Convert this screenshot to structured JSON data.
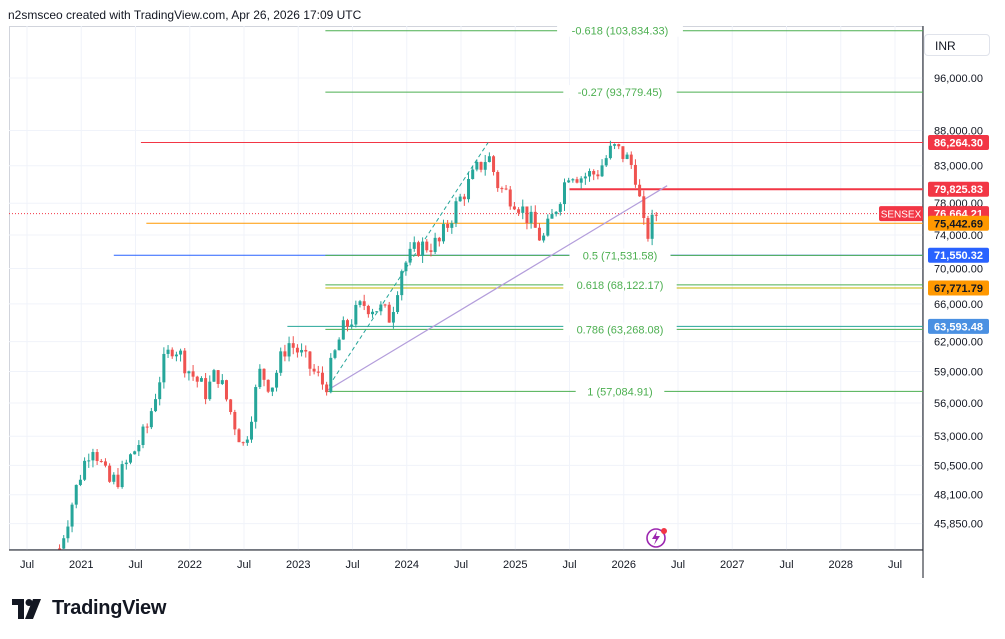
{
  "header": {
    "text": "n2smsceo created with TradingView.com, Apr 26, 2026 17:09 UTC"
  },
  "currency": "INR",
  "branding": {
    "name": "TradingView"
  },
  "colors": {
    "up": "#26a69a",
    "down": "#ef5350",
    "fib_line": "#4caf50",
    "fib_text": "#4caf50",
    "trend": "#b39ddb",
    "grid": "#f0f3fa"
  },
  "chart_data": {
    "type": "candlestick",
    "symbol": "SENSEX",
    "x_axis": {
      "ticks": [
        "Jul",
        "2021",
        "Jul",
        "2022",
        "Jul",
        "2023",
        "Jul",
        "2024",
        "Jul",
        "2025",
        "Jul",
        "2026",
        "Jul",
        "2027",
        "Jul",
        "2028",
        "Jul"
      ]
    },
    "y_axis": {
      "scale": "log",
      "ticks": [
        "96,000.00",
        "88,000.00",
        "83,000.00",
        "78,000.00",
        "74,000.00",
        "70,000.00",
        "66,000.00",
        "62,000.00",
        "59,000.00",
        "56,000.00",
        "53,000.00",
        "50,500.00",
        "48,100.00",
        "45,850.00"
      ]
    },
    "fibonacci_levels": [
      {
        "label": "-0.618 (103,834.33)",
        "value": 103834.33
      },
      {
        "label": "-0.27 (93,779.45)",
        "value": 93779.45
      },
      {
        "label": "0.5 (71,531.58)",
        "value": 71531.58
      },
      {
        "label": "0.618 (68,122.17)",
        "value": 68122.17
      },
      {
        "label": "0.786 (63,268.08)",
        "value": 63268.08
      },
      {
        "label": "1 (57,084.91)",
        "value": 57084.91
      }
    ],
    "price_labels": [
      {
        "text": "86,264.30",
        "value": 86264.3,
        "color": "#f23645"
      },
      {
        "text": "79,825.83",
        "value": 79825.83,
        "color": "#f23645"
      },
      {
        "text": "76,664.21",
        "value": 76664.21,
        "color": "#f23645",
        "name": "SENSEX"
      },
      {
        "text": "75,442.69",
        "value": 75442.69,
        "color": "#ff9800"
      },
      {
        "text": "71,550.32",
        "value": 71550.32,
        "color": "#2962ff"
      },
      {
        "text": "67,771.79",
        "value": 67771.79,
        "color": "#ff9800"
      },
      {
        "text": "63,593.48",
        "value": 63593.48,
        "color": "#4a90e2"
      }
    ],
    "horizontal_lines": [
      {
        "value": 86264.3,
        "color": "#f23645",
        "start_time": 2021.55
      },
      {
        "value": 79825.83,
        "color": "#f23645",
        "start_time": 2025.5
      },
      {
        "value": 75442.69,
        "color": "#ff9800",
        "start_time": 2021.6
      },
      {
        "value": 71550.32,
        "color": "#2962ff",
        "start_time": 2021.3
      },
      {
        "value": 67771.79,
        "color": "#c6b800",
        "start_time": 2023.25
      },
      {
        "value": 63593.48,
        "color": "#26a69a",
        "start_time": 2022.9
      }
    ],
    "fib_start_time": 2023.25,
    "trendline": {
      "from": [
        2023.25,
        57084.91
      ],
      "to": [
        2026.4,
        80300
      ]
    },
    "dashed_leg": {
      "from": [
        2023.25,
        57084.91
      ],
      "to": [
        2024.75,
        86264.3
      ]
    },
    "path": [
      [
        2020.8,
        44000
      ],
      [
        2021.0,
        50000
      ],
      [
        2021.1,
        52500
      ],
      [
        2021.25,
        49000
      ],
      [
        2021.35,
        49500
      ],
      [
        2021.6,
        53500
      ],
      [
        2021.75,
        59500
      ],
      [
        2021.85,
        61800
      ],
      [
        2022.0,
        59000
      ],
      [
        2022.15,
        57000
      ],
      [
        2022.25,
        59000
      ],
      [
        2022.4,
        54500
      ],
      [
        2022.5,
        52000
      ],
      [
        2022.65,
        59000
      ],
      [
        2022.75,
        57500
      ],
      [
        2022.9,
        62000
      ],
      [
        2023.0,
        61000
      ],
      [
        2023.1,
        59500
      ],
      [
        2023.25,
        57500
      ],
      [
        2023.4,
        63000
      ],
      [
        2023.6,
        66000
      ],
      [
        2023.75,
        65500
      ],
      [
        2023.85,
        64500
      ],
      [
        2023.95,
        70000
      ],
      [
        2024.1,
        72500
      ],
      [
        2024.3,
        73000
      ],
      [
        2024.45,
        77500
      ],
      [
        2024.65,
        82500
      ],
      [
        2024.75,
        84500
      ],
      [
        2024.85,
        80000
      ],
      [
        2025.0,
        78500
      ],
      [
        2025.15,
        75500
      ],
      [
        2025.25,
        73200
      ],
      [
        2025.35,
        76500
      ],
      [
        2025.5,
        82500
      ],
      [
        2025.6,
        81500
      ],
      [
        2025.75,
        82000
      ],
      [
        2025.9,
        85500
      ],
      [
        2026.0,
        84500
      ],
      [
        2026.1,
        82500
      ],
      [
        2026.2,
        73500
      ],
      [
        2026.3,
        76664
      ]
    ]
  }
}
